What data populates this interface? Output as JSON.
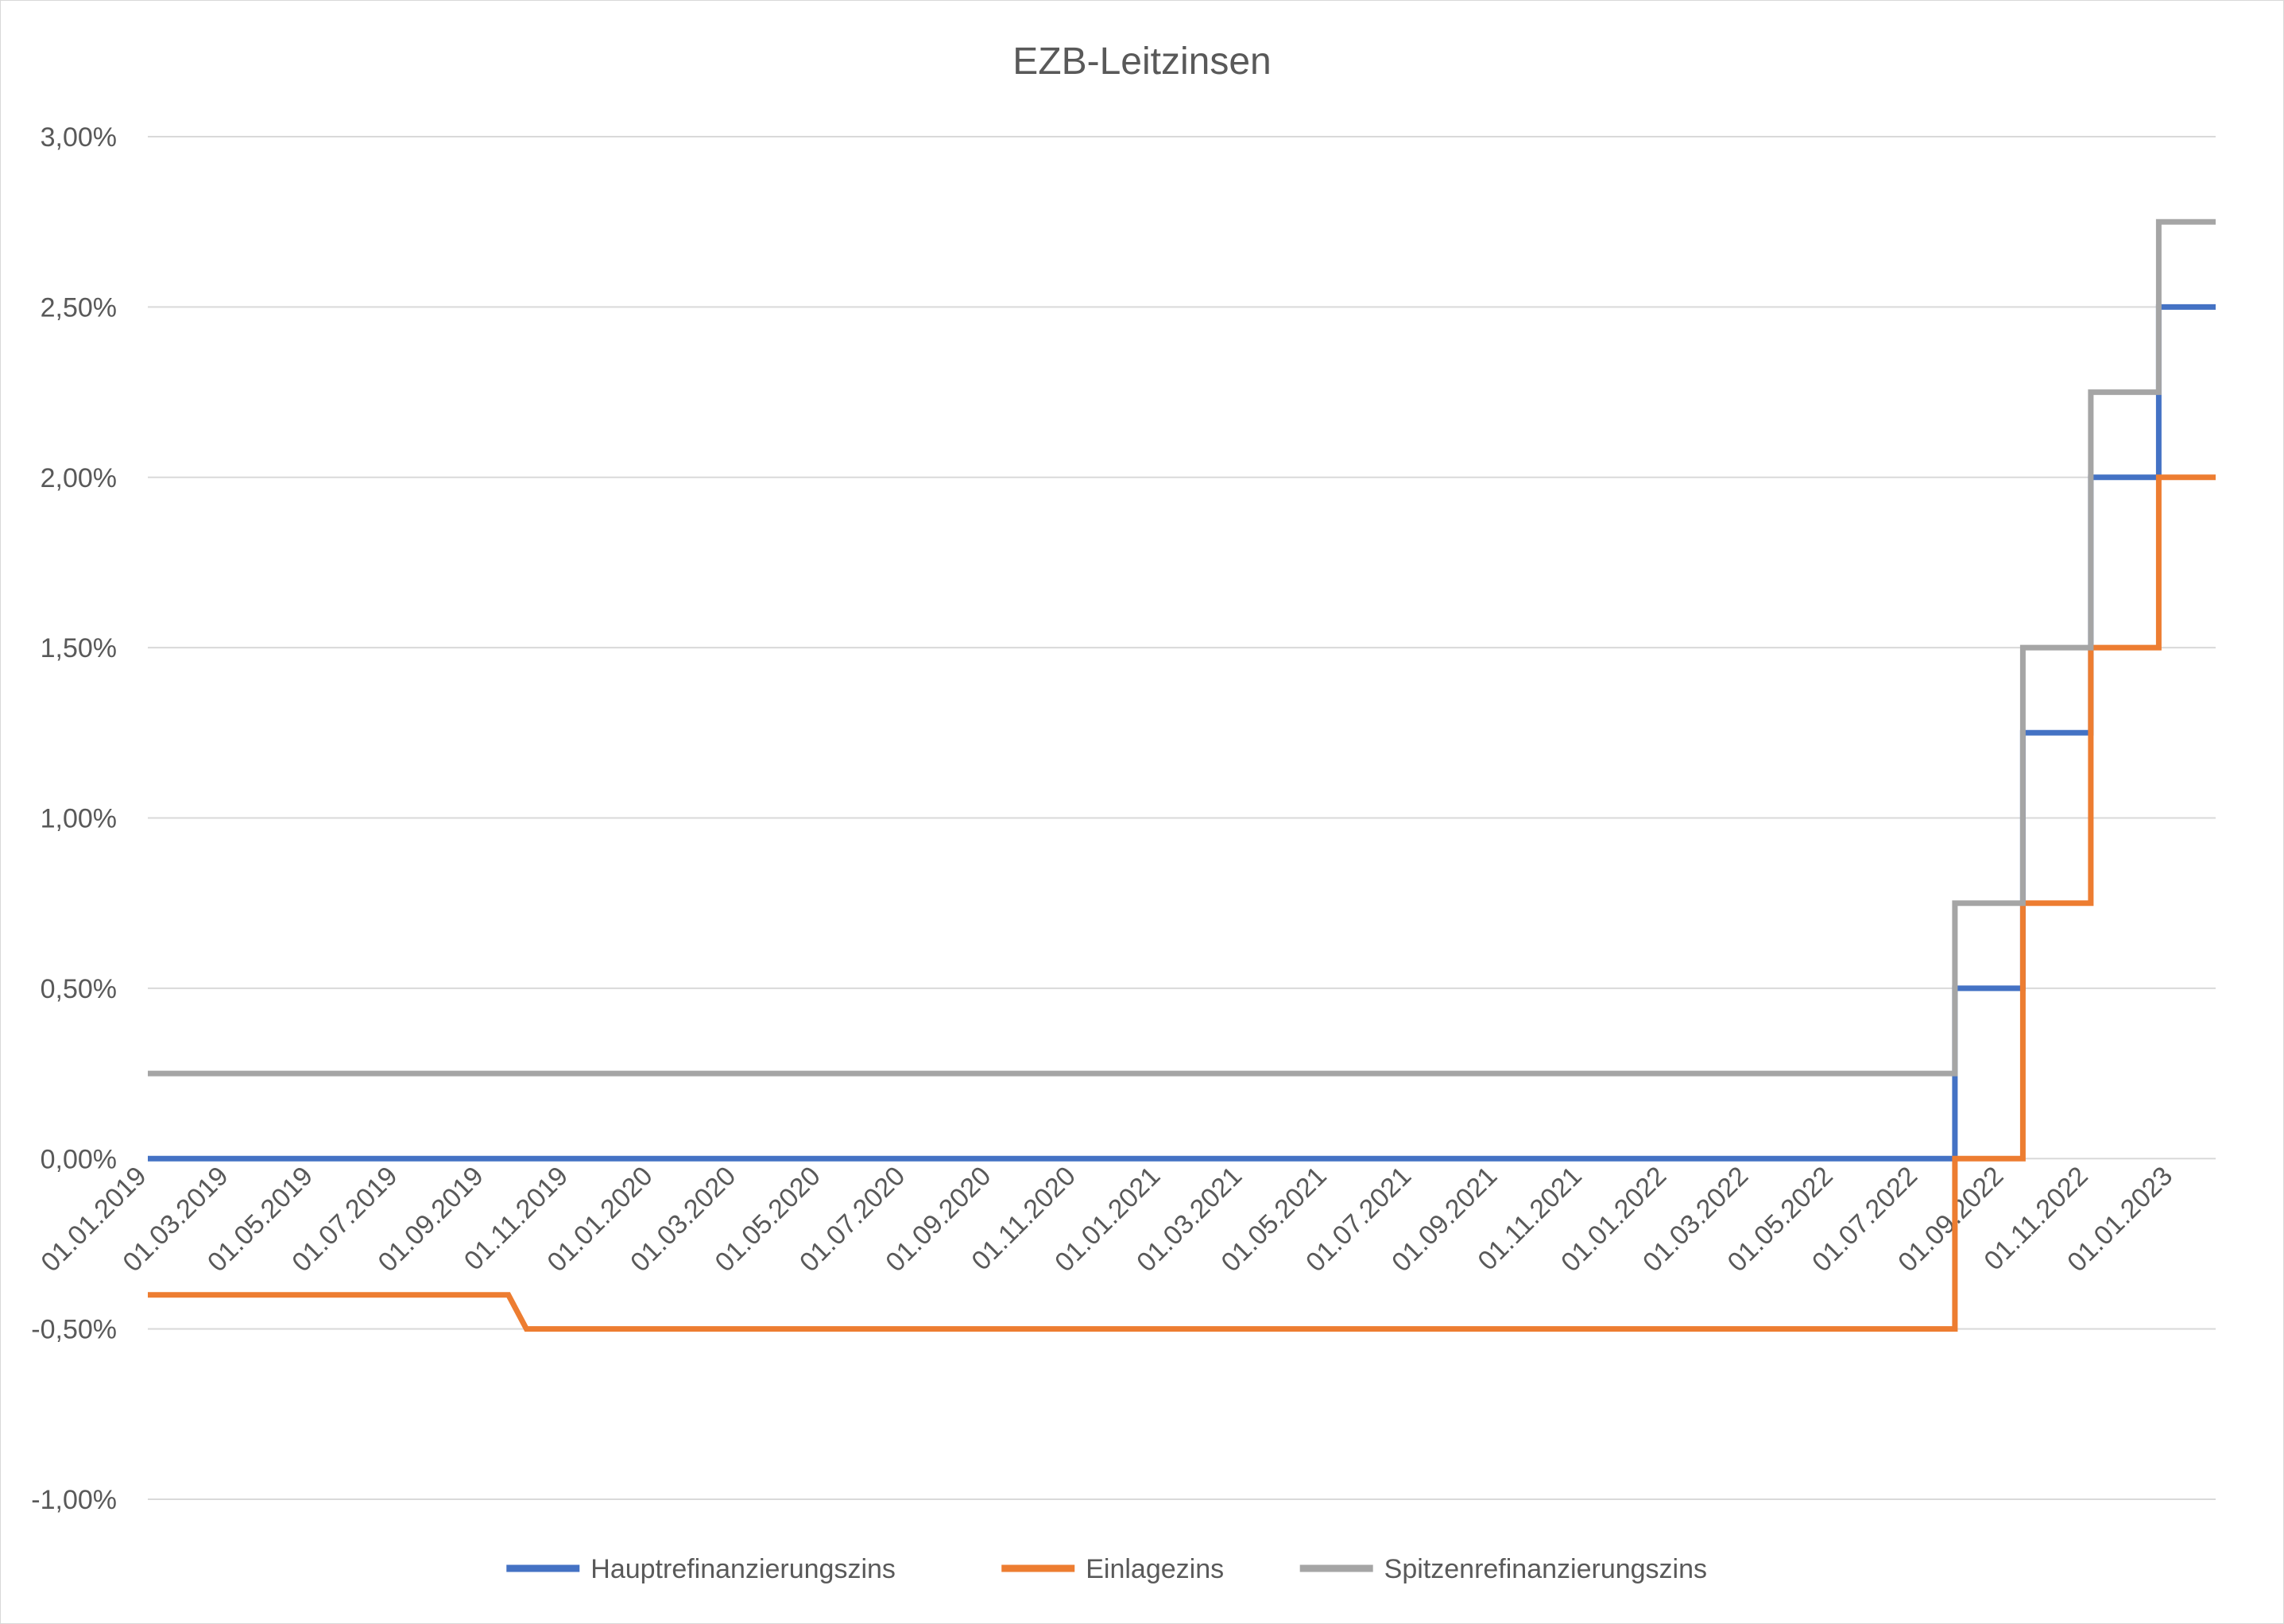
{
  "chart_data": {
    "type": "line",
    "title": "EZB-Leitzinsen",
    "xlabel": "",
    "ylabel": "",
    "x_axis": {
      "start": "01.01.2019",
      "end": "31.01.2023",
      "tick_labels": [
        "01.01.2019",
        "01.03.2019",
        "01.05.2019",
        "01.07.2019",
        "01.09.2019",
        "01.11.2019",
        "01.01.2020",
        "01.03.2020",
        "01.05.2020",
        "01.07.2020",
        "01.09.2020",
        "01.11.2020",
        "01.01.2021",
        "01.03.2021",
        "01.05.2021",
        "01.07.2021",
        "01.09.2021",
        "01.11.2021",
        "01.01.2022",
        "01.03.2022",
        "01.05.2022",
        "01.07.2022",
        "01.09.2022",
        "01.11.2022",
        "01.01.2023"
      ]
    },
    "y_axis": {
      "min": -1.0,
      "max": 3.0,
      "step": 0.5,
      "tick_labels": [
        "-1,00%",
        "-0,50%",
        "0,00%",
        "0,50%",
        "1,00%",
        "1,50%",
        "2,00%",
        "2,50%",
        "3,00%"
      ]
    },
    "ylim": [
      -1.0,
      3.0
    ],
    "grid": "horizontal",
    "legend_position": "bottom",
    "series": [
      {
        "name": "Hauptrefinanzierungszins",
        "color": "#4472c4",
        "points": [
          [
            "01.01.2019",
            0.0
          ],
          [
            "27.07.2022",
            0.0
          ],
          [
            "27.07.2022",
            0.5
          ],
          [
            "14.09.2022",
            0.5
          ],
          [
            "14.09.2022",
            1.25
          ],
          [
            "02.11.2022",
            1.25
          ],
          [
            "02.11.2022",
            2.0
          ],
          [
            "21.12.2022",
            2.0
          ],
          [
            "21.12.2022",
            2.5
          ],
          [
            "31.01.2023",
            2.5
          ]
        ]
      },
      {
        "name": "Einlagezins",
        "color": "#ed7d31",
        "points": [
          [
            "01.01.2019",
            -0.4
          ],
          [
            "18.09.2019",
            -0.4
          ],
          [
            "01.10.2019",
            -0.5
          ],
          [
            "27.07.2022",
            -0.5
          ],
          [
            "27.07.2022",
            0.0
          ],
          [
            "14.09.2022",
            0.0
          ],
          [
            "14.09.2022",
            0.75
          ],
          [
            "02.11.2022",
            0.75
          ],
          [
            "02.11.2022",
            1.5
          ],
          [
            "21.12.2022",
            1.5
          ],
          [
            "21.12.2022",
            2.0
          ],
          [
            "31.01.2023",
            2.0
          ]
        ]
      },
      {
        "name": "Spitzenrefinanzierungszins",
        "color": "#a5a5a5",
        "points": [
          [
            "01.01.2019",
            0.25
          ],
          [
            "27.07.2022",
            0.25
          ],
          [
            "27.07.2022",
            0.75
          ],
          [
            "14.09.2022",
            0.75
          ],
          [
            "14.09.2022",
            1.5
          ],
          [
            "02.11.2022",
            1.5
          ],
          [
            "02.11.2022",
            2.25
          ],
          [
            "21.12.2022",
            2.25
          ],
          [
            "21.12.2022",
            2.75
          ],
          [
            "31.01.2023",
            2.75
          ]
        ]
      }
    ]
  }
}
